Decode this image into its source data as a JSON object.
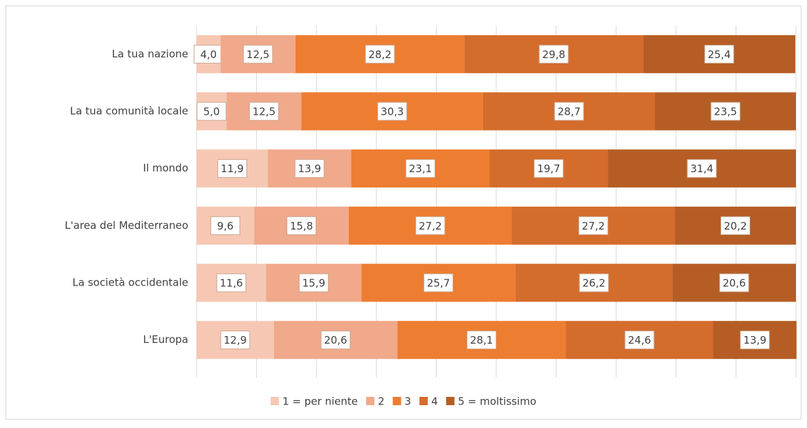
{
  "chart_data": {
    "type": "stacked-bar-horizontal",
    "categories": [
      "La tua nazione",
      "La tua comunità locale",
      "Il mondo",
      "L'area del Mediterraneo",
      "La società occidentale",
      "L'Europa"
    ],
    "series": [
      {
        "name": "1 = per niente",
        "color": "#f6c8b3",
        "values": [
          4.0,
          5.0,
          11.9,
          9.6,
          11.6,
          12.9
        ],
        "value_labels": [
          "4,0",
          "5,0",
          "11,9",
          "9,6",
          "11,6",
          "12,9"
        ]
      },
      {
        "name": "2",
        "color": "#f0a98a",
        "values": [
          12.5,
          12.5,
          13.9,
          15.8,
          15.9,
          20.6
        ],
        "value_labels": [
          "12,5",
          "12,5",
          "13,9",
          "15,8",
          "15,9",
          "20,6"
        ]
      },
      {
        "name": "3",
        "color": "#ed7d31",
        "values": [
          28.2,
          30.3,
          23.1,
          27.2,
          25.7,
          28.1
        ],
        "value_labels": [
          "28,2",
          "30,3",
          "23,1",
          "27,2",
          "25,7",
          "28,1"
        ]
      },
      {
        "name": "4",
        "color": "#d46c2c",
        "values": [
          29.8,
          28.7,
          19.7,
          27.2,
          26.2,
          24.6
        ],
        "value_labels": [
          "29,8",
          "28,7",
          "19,7",
          "27,2",
          "26,2",
          "24,6"
        ]
      },
      {
        "name": "5 = moltissimo",
        "color": "#b55d24",
        "values": [
          25.4,
          23.5,
          31.4,
          20.2,
          20.6,
          13.9
        ],
        "value_labels": [
          "25,4",
          "23,5",
          "31,4",
          "20,2",
          "20,6",
          "13,9"
        ]
      }
    ],
    "xlim": [
      0,
      100
    ],
    "xticks": [
      0,
      10,
      20,
      30,
      40,
      50,
      60,
      70,
      80,
      90,
      100
    ],
    "grid": true,
    "legend": "bottom"
  }
}
